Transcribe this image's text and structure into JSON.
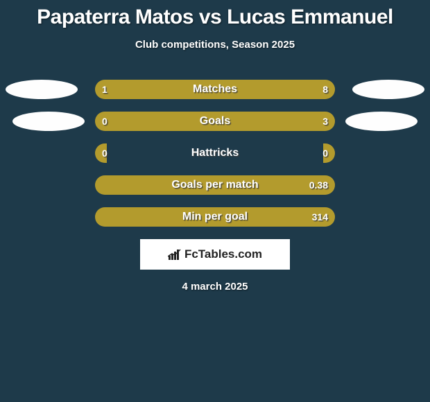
{
  "background_color": "#1e3a4a",
  "title": "Papaterra Matos vs Lucas Emmanuel",
  "title_fontsize": 30,
  "title_color": "#ffffff",
  "subtitle": "Club competitions, Season 2025",
  "subtitle_fontsize": 15,
  "date": "4 march 2025",
  "colors": {
    "left": "#b39b2d",
    "right": "#b39b2d",
    "oval_left": "#fefefe",
    "oval_right": "#fefefe"
  },
  "bar": {
    "track_width": 346,
    "height": 28,
    "radius": 14
  },
  "metrics": [
    {
      "label": "Matches",
      "left_value": "1",
      "right_value": "8",
      "left_pct": 17,
      "right_pct": 83
    },
    {
      "label": "Goals",
      "left_value": "0",
      "right_value": "3",
      "left_pct": 5,
      "right_pct": 95
    },
    {
      "label": "Hattricks",
      "left_value": "0",
      "right_value": "0",
      "left_pct": 5,
      "right_pct": 5
    },
    {
      "label": "Goals per match",
      "left_value": "",
      "right_value": "0.38",
      "left_pct": 5,
      "right_pct": 95
    },
    {
      "label": "Min per goal",
      "left_value": "",
      "right_value": "314",
      "left_pct": 5,
      "right_pct": 95
    }
  ],
  "branding": "FcTables.com"
}
